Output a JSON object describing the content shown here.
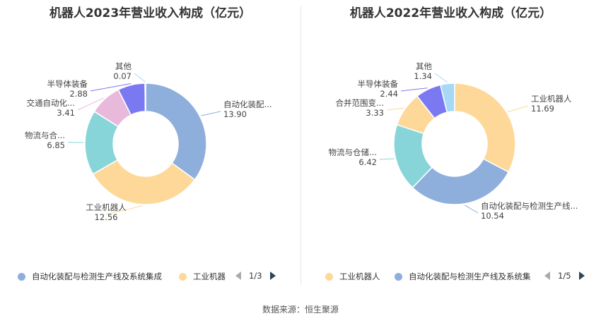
{
  "charts": [
    {
      "title": "机器人2023年营业收入构成（亿元）",
      "chart_data": {
        "type": "pie",
        "slices": [
          {
            "label": "自动化装配...",
            "value_text": "13.90",
            "value": 13.9,
            "color": "#8eaedb"
          },
          {
            "label": "工业机器人",
            "value_text": "12.56",
            "value": 12.56,
            "color": "#fed899"
          },
          {
            "label": "物流与合...",
            "value_text": "6.85",
            "value": 6.85,
            "color": "#88d5d9"
          },
          {
            "label": "交通自动化...",
            "value_text": "3.41",
            "value": 3.41,
            "color": "#e8b9da"
          },
          {
            "label": "半导体装备",
            "value_text": "2.88",
            "value": 2.88,
            "color": "#7b79f2"
          },
          {
            "label": "其他",
            "value_text": "0.07",
            "value": 0.07,
            "color": "#a7d8f5"
          }
        ]
      },
      "legend": [
        {
          "label": "自动化装配与检测生产线及系统集成",
          "color": "#8eaedb"
        },
        {
          "label": "工业机器",
          "color": "#fed899"
        }
      ],
      "pager": "1/3"
    },
    {
      "title": "机器人2022年营业收入构成（亿元）",
      "chart_data": {
        "type": "pie",
        "slices": [
          {
            "label": "工业机器人",
            "value_text": "11.69",
            "value": 11.69,
            "color": "#fed899"
          },
          {
            "label": "自动化装配与检测生产线...",
            "value_text": "10.54",
            "value": 10.54,
            "color": "#8eaedb"
          },
          {
            "label": "物流与仓储...",
            "value_text": "6.42",
            "value": 6.42,
            "color": "#88d5d9"
          },
          {
            "label": "合并范围变...",
            "value_text": "3.33",
            "value": 3.33,
            "color": "#fed899"
          },
          {
            "label": "半导体装备",
            "value_text": "2.44",
            "value": 2.44,
            "color": "#7b79f2"
          },
          {
            "label": "其他",
            "value_text": "1.34",
            "value": 1.34,
            "color": "#a7d8f5"
          }
        ]
      },
      "legend": [
        {
          "label": "工业机器人",
          "color": "#fed899"
        },
        {
          "label": "自动化装配与检测生产线及系统集",
          "color": "#8eaedb"
        }
      ],
      "pager": "1/5"
    }
  ],
  "source": "数据来源：恒生聚源"
}
